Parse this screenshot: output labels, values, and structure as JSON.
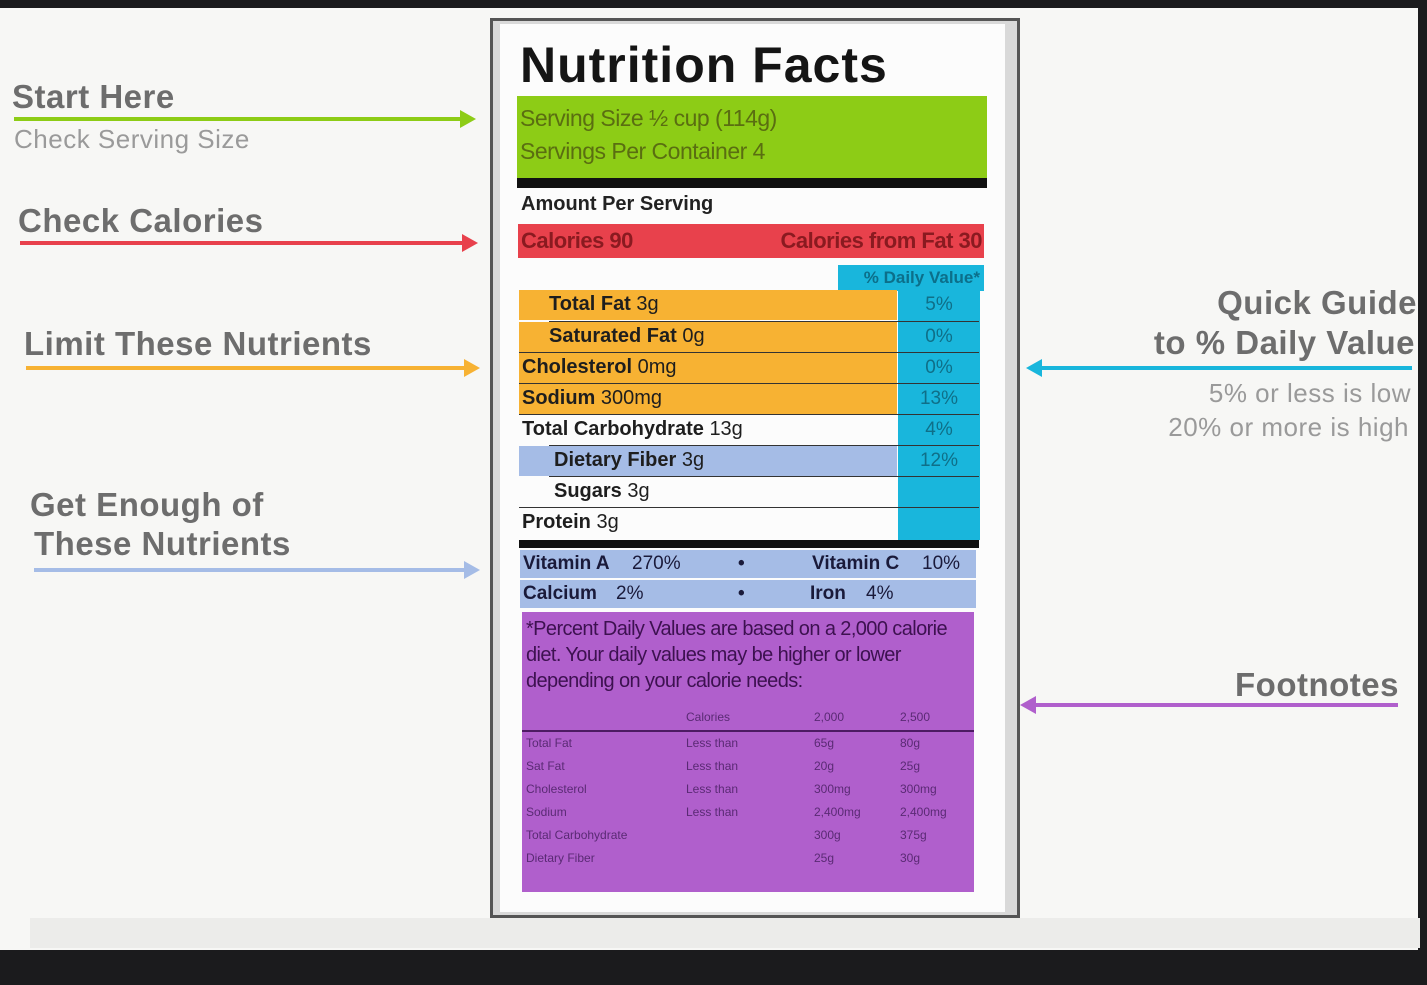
{
  "annotations": {
    "start_title": "Start Here",
    "start_sub": "Check Serving Size",
    "calories": "Check Calories",
    "limit": "Limit These Nutrients",
    "enough_line1": "Get Enough of",
    "enough_line2": "These Nutrients",
    "quick_line1": "Quick Guide",
    "quick_line2": "to % Daily Value",
    "low": "5% or less is low",
    "high": "20% or more is high",
    "footnotes": "Footnotes"
  },
  "colors": {
    "serving": "#8dcc16",
    "calories": "#e8414c",
    "limit": "#f7b233",
    "enough": "#a5bce6",
    "daily_value": "#19b6dc",
    "footnotes": "#b05fcc"
  },
  "label": {
    "title": "Nutrition Facts",
    "serving_size": "Serving Size ½ cup (114g)",
    "servings_per_container": "Servings Per Container 4",
    "amount_per_serving": "Amount Per Serving",
    "calories": "Calories 90",
    "calories_from_fat": "Calories from Fat 30",
    "daily_value_header": "% Daily Value*",
    "nutrients": [
      {
        "name": "Total Fat",
        "amount": "3g",
        "dv": "5%"
      },
      {
        "name": "Saturated Fat",
        "amount": "0g",
        "dv": "0%"
      },
      {
        "name": "Cholesterol",
        "amount": "0mg",
        "dv": "0%"
      },
      {
        "name": "Sodium",
        "amount": "300mg",
        "dv": "13%"
      },
      {
        "name": "Total Carbohydrate",
        "amount": "13g",
        "dv": "4%"
      },
      {
        "name": "Dietary Fiber",
        "amount": "3g",
        "dv": "12%"
      },
      {
        "name": "Sugars",
        "amount": "3g",
        "dv": ""
      },
      {
        "name": "Protein",
        "amount": "3g",
        "dv": ""
      }
    ],
    "vitamins": [
      {
        "name": "Vitamin A",
        "value": "270%"
      },
      {
        "name": "Vitamin C",
        "value": "10%"
      },
      {
        "name": "Calcium",
        "value": "2%"
      },
      {
        "name": "Iron",
        "value": "4%"
      }
    ],
    "bullet": "•",
    "footnote_text": "*Percent Daily Values are based on a 2,000 calorie diet. Your daily values may be higher or lower depending on your calorie needs:",
    "footnote_table": {
      "headers": [
        "Calories",
        "2,000",
        "2,500"
      ],
      "rows": [
        {
          "nutrient": "Total Fat",
          "qual": "Less than",
          "v2000": "65g",
          "v2500": "80g"
        },
        {
          "nutrient": "Sat Fat",
          "qual": "Less than",
          "v2000": "20g",
          "v2500": "25g"
        },
        {
          "nutrient": "Cholesterol",
          "qual": "Less than",
          "v2000": "300mg",
          "v2500": "300mg"
        },
        {
          "nutrient": "Sodium",
          "qual": "Less than",
          "v2000": "2,400mg",
          "v2500": "2,400mg"
        },
        {
          "nutrient": "Total Carbohydrate",
          "qual": "",
          "v2000": "300g",
          "v2500": "375g"
        },
        {
          "nutrient": "Dietary Fiber",
          "qual": "",
          "v2000": "25g",
          "v2500": "30g"
        }
      ]
    }
  }
}
